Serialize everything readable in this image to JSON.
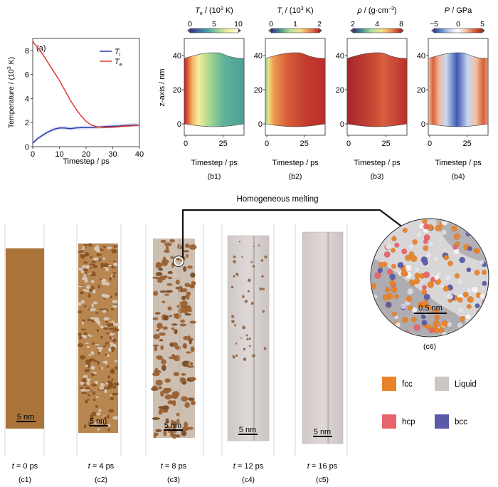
{
  "chart_data": [
    {
      "type": "line",
      "panel_label": "(a)",
      "xlabel": "Timestep / ps",
      "ylabel_main": "Temperature / (10",
      "ylabel_exp": "3",
      "ylabel_tail": " K)",
      "xlim": [
        0,
        40
      ],
      "ylim": [
        0,
        9
      ],
      "xticks": [
        "0",
        "10",
        "20",
        "30",
        "40"
      ],
      "yticks": [
        "0",
        "2",
        "4",
        "6",
        "8"
      ],
      "legend_position": "top-right",
      "series": [
        {
          "name_main": "T",
          "name_sub": "i",
          "color": "#2b3aa8",
          "x": [
            0,
            2,
            4,
            6,
            8,
            10,
            12,
            14,
            16,
            18,
            20,
            22,
            24,
            26,
            28,
            30,
            32,
            34,
            36,
            38,
            40
          ],
          "y": [
            0.3,
            0.7,
            1.0,
            1.25,
            1.45,
            1.55,
            1.55,
            1.5,
            1.55,
            1.58,
            1.6,
            1.6,
            1.62,
            1.65,
            1.68,
            1.7,
            1.72,
            1.75,
            1.78,
            1.8,
            1.8
          ]
        },
        {
          "name_main": "T",
          "name_sub": "e",
          "color": "#e03a2a",
          "x": [
            0,
            0.5,
            2,
            4,
            6,
            8,
            10,
            12,
            14,
            16,
            18,
            20,
            22,
            24,
            26,
            28,
            30,
            32,
            34,
            36,
            38,
            40
          ],
          "y": [
            8.8,
            8.6,
            8.2,
            7.6,
            6.9,
            6.2,
            5.5,
            4.7,
            3.9,
            3.2,
            2.6,
            2.1,
            1.8,
            1.65,
            1.6,
            1.6,
            1.62,
            1.65,
            1.7,
            1.72,
            1.75,
            1.78
          ]
        }
      ]
    },
    {
      "type": "heatmap",
      "panels": [
        {
          "label": "(b1)",
          "cb_main": "T",
          "cb_sub": "e",
          "cb_tail": " / (10",
          "cb_exp": "3",
          "cb_end": " K)",
          "cb_ticks": [
            "0",
            "5",
            "10"
          ],
          "colors": [
            "#3b2f7a",
            "#3f6eaa",
            "#4fa8a0",
            "#a8d890",
            "#f3ef9c",
            "#ffffff"
          ]
        },
        {
          "label": "(b2)",
          "cb_main": "T",
          "cb_sub": "i",
          "cb_tail": " / (10",
          "cb_exp": "3",
          "cb_end": " K)",
          "cb_ticks": [
            "0",
            "1",
            "2"
          ],
          "colors": [
            "#3a2a8a",
            "#4a9a8c",
            "#b9e0a0",
            "#f4e08a",
            "#eb8a4a",
            "#b8202a"
          ]
        },
        {
          "label": "(b3)",
          "cb_main": "ρ",
          "cb_sub": "",
          "cb_tail": " / (g·cm",
          "cb_exp": "−3",
          "cb_end": ")",
          "cb_ticks": [
            "2",
            "4",
            "8"
          ],
          "colors": [
            "#3a2a8a",
            "#4a9a8c",
            "#b9e0a0",
            "#f4e08a",
            "#eb8a4a",
            "#b8202a"
          ]
        },
        {
          "label": "(b4)",
          "cb_main": "P",
          "cb_sub": "",
          "cb_tail": " / GPa",
          "cb_exp": "",
          "cb_end": "",
          "cb_ticks": [
            "−5",
            "0",
            "5"
          ],
          "colors": [
            "#283c9a",
            "#6a8ed0",
            "#c8d8f0",
            "#ffffff",
            "#f0c0a0",
            "#d8603a",
            "#a82020"
          ]
        }
      ],
      "ylabel": "z-axis / nm",
      "xlabel": "Timestep / ps",
      "xticks": [
        "0",
        "25"
      ],
      "yticks": [
        "0",
        "20",
        "40"
      ]
    }
  ],
  "snapshots": {
    "title": "Homogeneous melting",
    "scale_label": "5 nm",
    "zoom_scale_label": "0.5 nm",
    "zoom_label": "(c6)",
    "time_prefix": "t",
    "items": [
      {
        "time": " = 0 ps",
        "label": "(c1)"
      },
      {
        "time": " = 4 ps",
        "label": "(c2)"
      },
      {
        "time": " = 8 ps",
        "label": "(c3)"
      },
      {
        "time": " = 12 ps",
        "label": "(c4)"
      },
      {
        "time": " = 16 ps",
        "label": "(c5)"
      }
    ]
  },
  "legend": {
    "items": [
      {
        "name": "fcc",
        "color": "#e8832a"
      },
      {
        "name": "Liquid",
        "color": "#cdc6c2"
      },
      {
        "name": "hcp",
        "color": "#e8636a"
      },
      {
        "name": "bcc",
        "color": "#5a5aa8"
      }
    ]
  }
}
